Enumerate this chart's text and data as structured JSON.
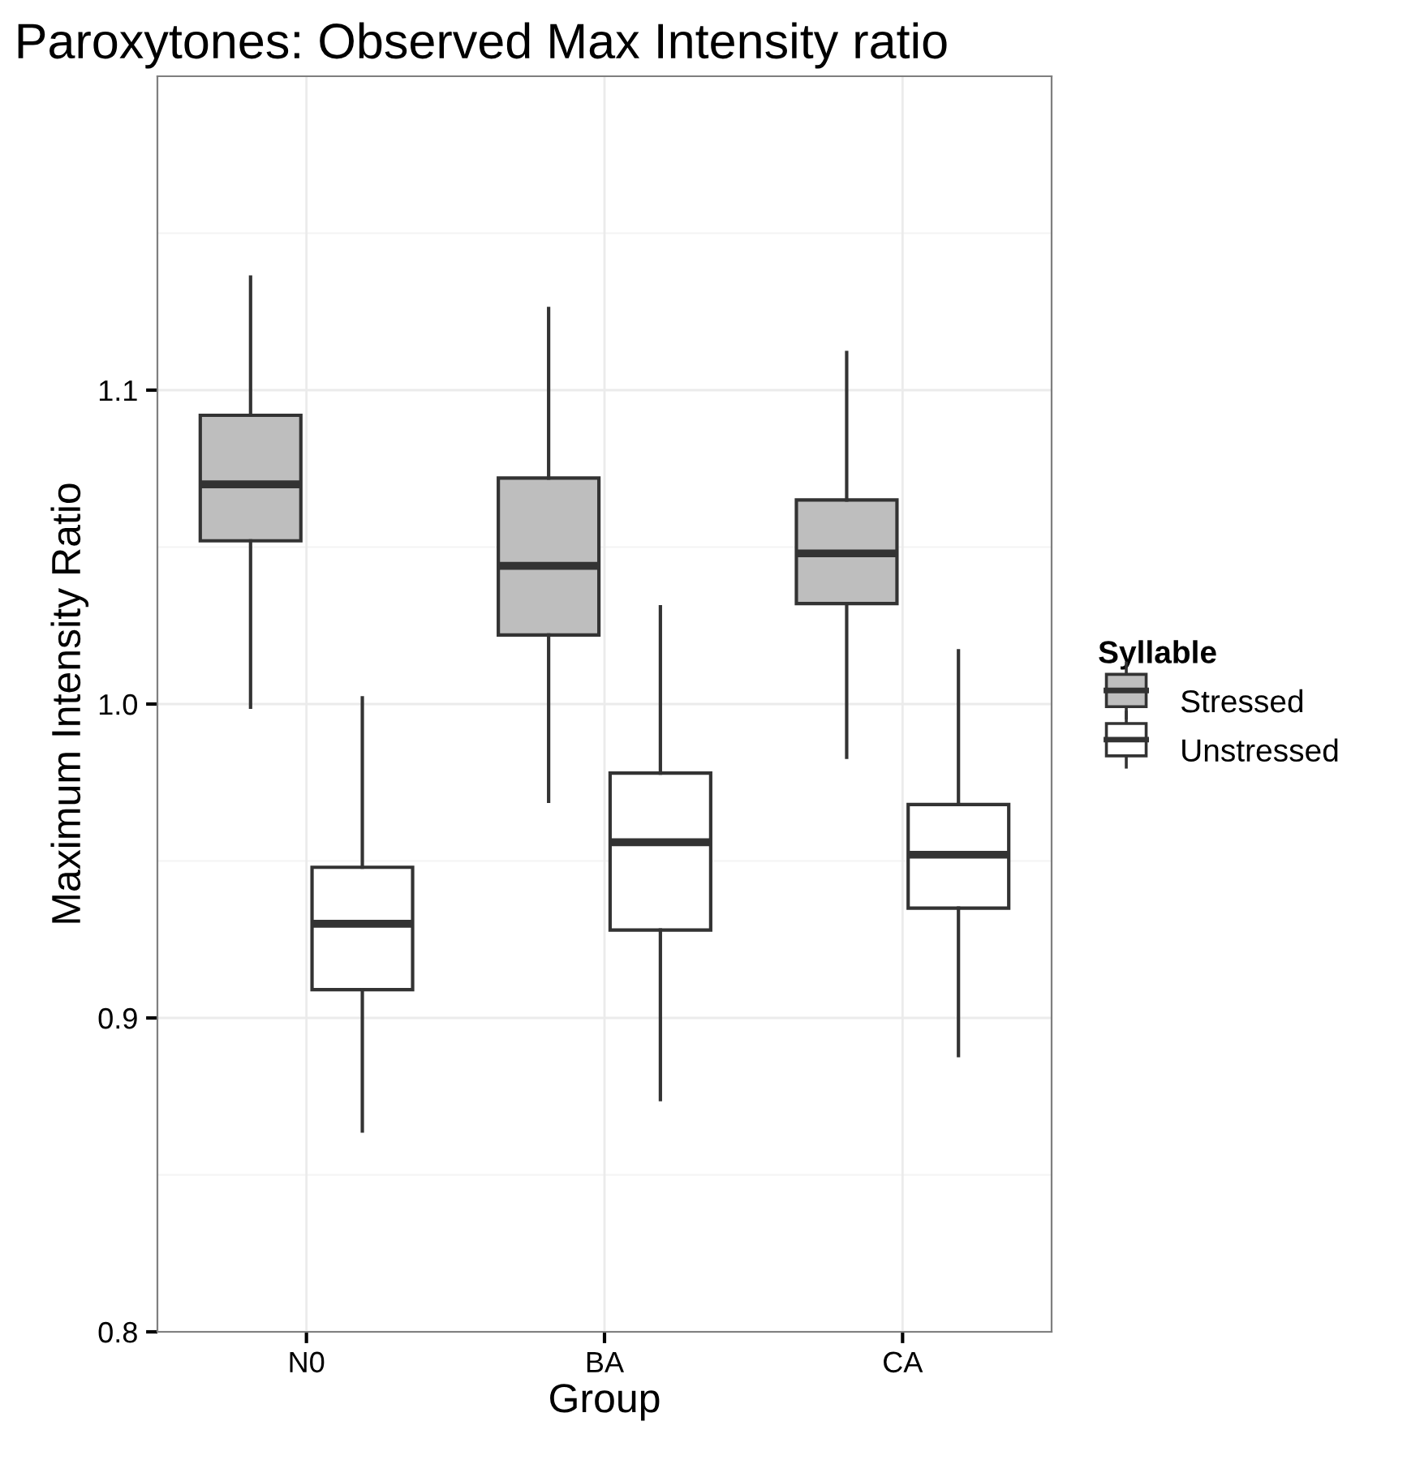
{
  "chart_data": {
    "type": "box",
    "title": "Paroxytones: Observed Max Intensity ratio",
    "xlabel": "Group",
    "ylabel": "Maximum Intensity Ratio",
    "legend_title": "Syllable",
    "categories": [
      "N0",
      "BA",
      "CA"
    ],
    "series": [
      {
        "name": "Stressed",
        "color": "#bebebe",
        "boxes": [
          {
            "low": 0.999,
            "q1": 1.052,
            "median": 1.07,
            "q3": 1.092,
            "high": 1.136
          },
          {
            "low": 0.969,
            "q1": 1.022,
            "median": 1.044,
            "q3": 1.072,
            "high": 1.126
          },
          {
            "low": 0.983,
            "q1": 1.032,
            "median": 1.048,
            "q3": 1.065,
            "high": 1.112
          }
        ]
      },
      {
        "name": "Unstressed",
        "color": "#ffffff",
        "boxes": [
          {
            "low": 0.864,
            "q1": 0.909,
            "median": 0.93,
            "q3": 0.948,
            "high": 1.002
          },
          {
            "low": 0.874,
            "q1": 0.928,
            "median": 0.956,
            "q3": 0.978,
            "high": 1.031
          },
          {
            "low": 0.888,
            "q1": 0.935,
            "median": 0.952,
            "q3": 0.968,
            "high": 1.017
          }
        ]
      }
    ],
    "ylim": [
      0.8,
      1.2
    ],
    "yticks": [
      {
        "value": 0.8,
        "label": "0.8"
      },
      {
        "value": 0.9,
        "label": "0.9"
      },
      {
        "value": 1.0,
        "label": "1.0"
      },
      {
        "value": 1.1,
        "label": "1.1"
      }
    ],
    "grid": true,
    "legend": "right"
  }
}
